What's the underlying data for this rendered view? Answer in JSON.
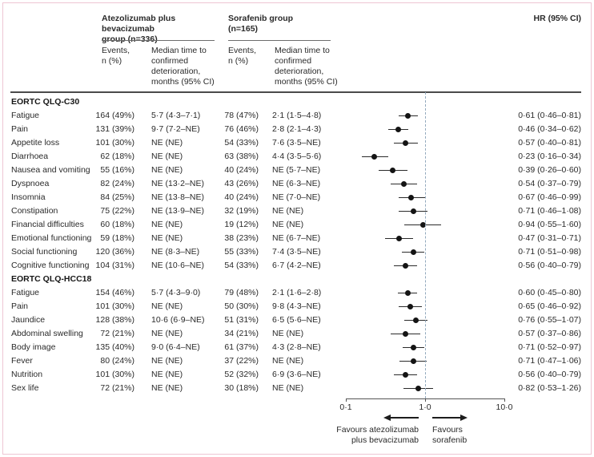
{
  "header": {
    "group1_title": "Atezolizumab plus bevacizumab\ngroup (n=336)",
    "group2_title": "Sorafenib group\n(n=165)",
    "events_label": "Events,\nn (%)",
    "median_label": "Median time to\nconfirmed\ndeterioration,\nmonths (95% CI)",
    "hr_label": "HR (95% CI)"
  },
  "chart_data": {
    "type": "forest",
    "x_axis": {
      "scale": "log10",
      "range": [
        0.1,
        10.0
      ],
      "tick_values": [
        0.1,
        1.0,
        10.0
      ],
      "tick_labels": [
        "0·1",
        "1·0",
        "10·0"
      ],
      "reference_line": 1.0
    },
    "legend": {
      "left_arrow_label": "Favours atezolizumab\nplus bevacizumab",
      "right_arrow_label": "Favours\nsorafenib"
    },
    "colors": {
      "dot": "#141414",
      "ci_line": "#2b2b2b",
      "reference": "#92a9bd",
      "frame": "#eec6d3"
    },
    "sections": [
      {
        "title": "EORTC QLQ-C30",
        "rows": [
          {
            "label": "Fatigue",
            "g1_events": "164 (49%)",
            "g1_median": "5·7 (4·3–7·1)",
            "g2_events": "78 (47%)",
            "g2_median": "2·1 (1·5–4·8)",
            "hr_text": "0·61 (0·46–0·81)",
            "hr": 0.61,
            "lo": 0.46,
            "hi": 0.81
          },
          {
            "label": "Pain",
            "g1_events": "131 (39%)",
            "g1_median": "9·7 (7·2–NE)",
            "g2_events": "76 (46%)",
            "g2_median": "2·8 (2·1–4·3)",
            "hr_text": "0·46 (0·34–0·62)",
            "hr": 0.46,
            "lo": 0.34,
            "hi": 0.62
          },
          {
            "label": "Appetite loss",
            "g1_events": "101 (30%)",
            "g1_median": "NE (NE)",
            "g2_events": "54 (33%)",
            "g2_median": "7·6 (3·5–NE)",
            "hr_text": "0·57 (0·40–0·81)",
            "hr": 0.57,
            "lo": 0.4,
            "hi": 0.81
          },
          {
            "label": "Diarrhoea",
            "g1_events": "62 (18%)",
            "g1_median": "NE (NE)",
            "g2_events": "63 (38%)",
            "g2_median": "4·4 (3·5–5·6)",
            "hr_text": "0·23 (0·16–0·34)",
            "hr": 0.23,
            "lo": 0.16,
            "hi": 0.34
          },
          {
            "label": "Nausea and vomiting",
            "g1_events": "55 (16%)",
            "g1_median": "NE (NE)",
            "g2_events": "40 (24%)",
            "g2_median": "NE (5·7–NE)",
            "hr_text": "0·39 (0·26–0·60)",
            "hr": 0.39,
            "lo": 0.26,
            "hi": 0.6
          },
          {
            "label": "Dyspnoea",
            "g1_events": "82 (24%)",
            "g1_median": "NE (13·2–NE)",
            "g2_events": "43 (26%)",
            "g2_median": "NE (6·3–NE)",
            "hr_text": "0·54 (0·37–0·79)",
            "hr": 0.54,
            "lo": 0.37,
            "hi": 0.79
          },
          {
            "label": "Insomnia",
            "g1_events": "84 (25%)",
            "g1_median": "NE (13·8–NE)",
            "g2_events": "40 (24%)",
            "g2_median": "NE (7·0–NE)",
            "hr_text": "0·67 (0·46–0·99)",
            "hr": 0.67,
            "lo": 0.46,
            "hi": 0.99
          },
          {
            "label": "Constipation",
            "g1_events": "75 (22%)",
            "g1_median": "NE (13·9–NE)",
            "g2_events": "32 (19%)",
            "g2_median": "NE (NE)",
            "hr_text": "0·71 (0·46–1·08)",
            "hr": 0.71,
            "lo": 0.46,
            "hi": 1.08
          },
          {
            "label": "Financial difficulties",
            "g1_events": "60 (18%)",
            "g1_median": "NE (NE)",
            "g2_events": "19 (12%)",
            "g2_median": "NE (NE)",
            "hr_text": "0·94 (0·55–1·60)",
            "hr": 0.94,
            "lo": 0.55,
            "hi": 1.6
          },
          {
            "label": "Emotional functioning",
            "g1_events": "59 (18%)",
            "g1_median": "NE (NE)",
            "g2_events": "38 (23%)",
            "g2_median": "NE (6·7–NE)",
            "hr_text": "0·47 (0·31–0·71)",
            "hr": 0.47,
            "lo": 0.31,
            "hi": 0.71
          },
          {
            "label": "Social functioning",
            "g1_events": "120 (36%)",
            "g1_median": "NE (8·3–NE)",
            "g2_events": "55 (33%)",
            "g2_median": "7·4 (3·5–NE)",
            "hr_text": "0·71 (0·51–0·98)",
            "hr": 0.71,
            "lo": 0.51,
            "hi": 0.98
          },
          {
            "label": "Cognitive functioning",
            "g1_events": "104 (31%)",
            "g1_median": "NE (10·6–NE)",
            "g2_events": "54 (33%)",
            "g2_median": "6·7 (4·2–NE)",
            "hr_text": "0·56 (0·40–0·79)",
            "hr": 0.56,
            "lo": 0.4,
            "hi": 0.79
          }
        ]
      },
      {
        "title": "EORTC QLQ-HCC18",
        "rows": [
          {
            "label": "Fatigue",
            "g1_events": "154 (46%)",
            "g1_median": "5·7 (4·3–9·0)",
            "g2_events": "79 (48%)",
            "g2_median": "2·1 (1·6–2·8)",
            "hr_text": "0·60 (0·45–0·80)",
            "hr": 0.6,
            "lo": 0.45,
            "hi": 0.8
          },
          {
            "label": "Pain",
            "g1_events": "101 (30%)",
            "g1_median": "NE (NE)",
            "g2_events": "50 (30%)",
            "g2_median": "9·8 (4·3–NE)",
            "hr_text": "0·65 (0·46–0·92)",
            "hr": 0.65,
            "lo": 0.46,
            "hi": 0.92
          },
          {
            "label": "Jaundice",
            "g1_events": "128 (38%)",
            "g1_median": "10·6 (6·9–NE)",
            "g2_events": "51 (31%)",
            "g2_median": "6·5 (5·6–NE)",
            "hr_text": "0·76 (0·55–1·07)",
            "hr": 0.76,
            "lo": 0.55,
            "hi": 1.07
          },
          {
            "label": "Abdominal swelling",
            "g1_events": "72 (21%)",
            "g1_median": "NE (NE)",
            "g2_events": "34 (21%)",
            "g2_median": "NE (NE)",
            "hr_text": "0·57 (0·37–0·86)",
            "hr": 0.57,
            "lo": 0.37,
            "hi": 0.86
          },
          {
            "label": "Body image",
            "g1_events": "135 (40%)",
            "g1_median": "9·0 (6·4–NE)",
            "g2_events": "61 (37%)",
            "g2_median": "4·3 (2·8–NE)",
            "hr_text": "0·71 (0·52–0·97)",
            "hr": 0.71,
            "lo": 0.52,
            "hi": 0.97
          },
          {
            "label": "Fever",
            "g1_events": "80 (24%)",
            "g1_median": "NE (NE)",
            "g2_events": "37 (22%)",
            "g2_median": "NE (NE)",
            "hr_text": "0·71 (0·47–1·06)",
            "hr": 0.71,
            "lo": 0.47,
            "hi": 1.06
          },
          {
            "label": "Nutrition",
            "g1_events": "101 (30%)",
            "g1_median": "NE (NE)",
            "g2_events": "52 (32%)",
            "g2_median": "6·9 (3·6–NE)",
            "hr_text": "0·56 (0·40–0·79)",
            "hr": 0.56,
            "lo": 0.4,
            "hi": 0.79
          },
          {
            "label": "Sex life",
            "g1_events": "72 (21%)",
            "g1_median": "NE (NE)",
            "g2_events": "30 (18%)",
            "g2_median": "NE (NE)",
            "hr_text": "0·82 (0·53–1·26)",
            "hr": 0.82,
            "lo": 0.53,
            "hi": 1.26
          }
        ]
      }
    ]
  }
}
